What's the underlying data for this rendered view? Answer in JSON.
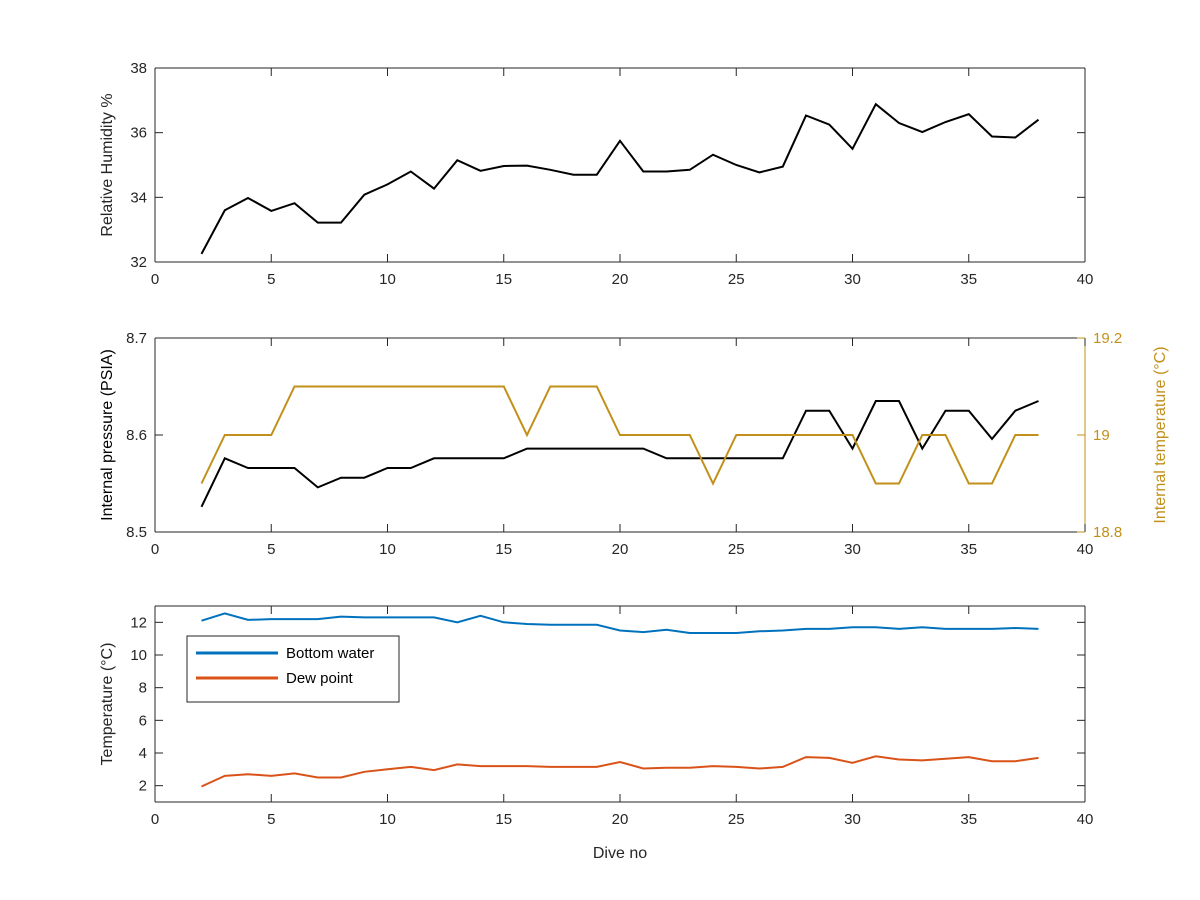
{
  "chart_data": [
    {
      "type": "line",
      "title": "",
      "xlabel": "",
      "ylabel": "Relative Humidity %",
      "xlim": [
        0,
        40
      ],
      "ylim": [
        32,
        38
      ],
      "xticks": [
        0,
        5,
        10,
        15,
        20,
        25,
        30,
        35,
        40
      ],
      "yticks": [
        32,
        34,
        36,
        38
      ],
      "grid": false,
      "series": [
        {
          "color": "#000000",
          "x": [
            2,
            3,
            4,
            5,
            6,
            7,
            8,
            9,
            10,
            11,
            12,
            13,
            14,
            15,
            16,
            17,
            18,
            19,
            20,
            21,
            22,
            23,
            24,
            25,
            26,
            27,
            28,
            29,
            30,
            31,
            32,
            33,
            34,
            35,
            36,
            37,
            38
          ],
          "values": [
            32.25,
            33.6,
            33.98,
            33.58,
            33.82,
            33.22,
            33.22,
            34.08,
            34.4,
            34.8,
            34.27,
            35.15,
            34.82,
            34.97,
            34.98,
            34.85,
            34.7,
            34.7,
            35.75,
            34.8,
            34.8,
            34.85,
            35.32,
            35.0,
            34.77,
            34.95,
            36.53,
            36.25,
            35.5,
            36.88,
            36.3,
            36.02,
            36.33,
            36.57,
            35.88,
            35.85,
            36.4
          ]
        }
      ]
    },
    {
      "type": "line",
      "title": "",
      "xlabel": "",
      "ylabel": "Internal pressure (PSIA)",
      "y2label": "Internal temperature (°C)",
      "xlim": [
        0,
        40
      ],
      "ylim": [
        8.5,
        8.7
      ],
      "y2lim": [
        18.8,
        19.2
      ],
      "xticks": [
        0,
        5,
        10,
        15,
        20,
        25,
        30,
        35,
        40
      ],
      "yticks": [
        8.5,
        8.6,
        8.7
      ],
      "yticklabels": [
        "8.5",
        "8.6",
        "8.7"
      ],
      "y2ticks": [
        18.8,
        19.0,
        19.2
      ],
      "y2ticklabels": [
        "18.8",
        "19",
        "19.2"
      ],
      "y2color": "#c2901a",
      "grid": false,
      "series": [
        {
          "axis": "left",
          "color": "#000000",
          "x": [
            2,
            3,
            4,
            5,
            6,
            7,
            8,
            9,
            10,
            11,
            12,
            13,
            14,
            15,
            16,
            17,
            18,
            19,
            20,
            21,
            22,
            23,
            24,
            25,
            26,
            27,
            28,
            29,
            30,
            31,
            32,
            33,
            34,
            35,
            36,
            37,
            38
          ],
          "values": [
            8.526,
            8.576,
            8.566,
            8.566,
            8.566,
            8.546,
            8.556,
            8.556,
            8.566,
            8.566,
            8.576,
            8.576,
            8.576,
            8.576,
            8.586,
            8.586,
            8.586,
            8.586,
            8.586,
            8.586,
            8.576,
            8.576,
            8.576,
            8.576,
            8.576,
            8.576,
            8.625,
            8.625,
            8.586,
            8.635,
            8.635,
            8.586,
            8.625,
            8.625,
            8.596,
            8.625,
            8.635
          ]
        },
        {
          "axis": "right",
          "color": "#c2901a",
          "x": [
            2,
            3,
            4,
            5,
            6,
            7,
            8,
            9,
            10,
            11,
            12,
            13,
            14,
            15,
            16,
            17,
            18,
            19,
            20,
            21,
            22,
            23,
            24,
            25,
            26,
            27,
            28,
            29,
            30,
            31,
            32,
            33,
            34,
            35,
            36,
            37,
            38
          ],
          "values": [
            18.9,
            19.0,
            19.0,
            19.0,
            19.1,
            19.1,
            19.1,
            19.1,
            19.1,
            19.1,
            19.1,
            19.1,
            19.1,
            19.1,
            19.0,
            19.1,
            19.1,
            19.1,
            19.0,
            19.0,
            19.0,
            19.0,
            18.9,
            19.0,
            19.0,
            19.0,
            19.0,
            19.0,
            19.0,
            18.9,
            18.9,
            19.0,
            19.0,
            18.9,
            18.9,
            19.0,
            19.0
          ]
        }
      ]
    },
    {
      "type": "line",
      "title": "",
      "xlabel": "Dive no",
      "ylabel": "Temperature (°C)",
      "xlim": [
        0,
        40
      ],
      "ylim": [
        1,
        13
      ],
      "xticks": [
        0,
        5,
        10,
        15,
        20,
        25,
        30,
        35,
        40
      ],
      "yticks": [
        2,
        4,
        6,
        8,
        10,
        12
      ],
      "grid": false,
      "legend": "top-left",
      "series": [
        {
          "name": "Bottom water",
          "color": "#0072bd",
          "x": [
            2,
            3,
            4,
            5,
            6,
            7,
            8,
            9,
            10,
            11,
            12,
            13,
            14,
            15,
            16,
            17,
            18,
            19,
            20,
            21,
            22,
            23,
            24,
            25,
            26,
            27,
            28,
            29,
            30,
            31,
            32,
            33,
            34,
            35,
            36,
            37,
            38
          ],
          "values": [
            12.1,
            12.55,
            12.15,
            12.2,
            12.2,
            12.2,
            12.35,
            12.3,
            12.3,
            12.3,
            12.3,
            12.0,
            12.4,
            12.0,
            11.9,
            11.85,
            11.85,
            11.85,
            11.5,
            11.4,
            11.55,
            11.35,
            11.35,
            11.35,
            11.45,
            11.5,
            11.6,
            11.6,
            11.7,
            11.7,
            11.6,
            11.7,
            11.6,
            11.6,
            11.6,
            11.65,
            11.6
          ]
        },
        {
          "name": "Dew point",
          "color": "#d95319",
          "x": [
            2,
            3,
            4,
            5,
            6,
            7,
            8,
            9,
            10,
            11,
            12,
            13,
            14,
            15,
            16,
            17,
            18,
            19,
            20,
            21,
            22,
            23,
            24,
            25,
            26,
            27,
            28,
            29,
            30,
            31,
            32,
            33,
            34,
            35,
            36,
            37,
            38
          ],
          "values": [
            1.95,
            2.6,
            2.7,
            2.6,
            2.75,
            2.5,
            2.5,
            2.85,
            3.0,
            3.15,
            2.95,
            3.3,
            3.2,
            3.2,
            3.2,
            3.15,
            3.15,
            3.15,
            3.45,
            3.05,
            3.1,
            3.1,
            3.2,
            3.15,
            3.05,
            3.15,
            3.75,
            3.7,
            3.4,
            3.8,
            3.6,
            3.55,
            3.65,
            3.75,
            3.5,
            3.5,
            3.7
          ]
        }
      ]
    }
  ]
}
